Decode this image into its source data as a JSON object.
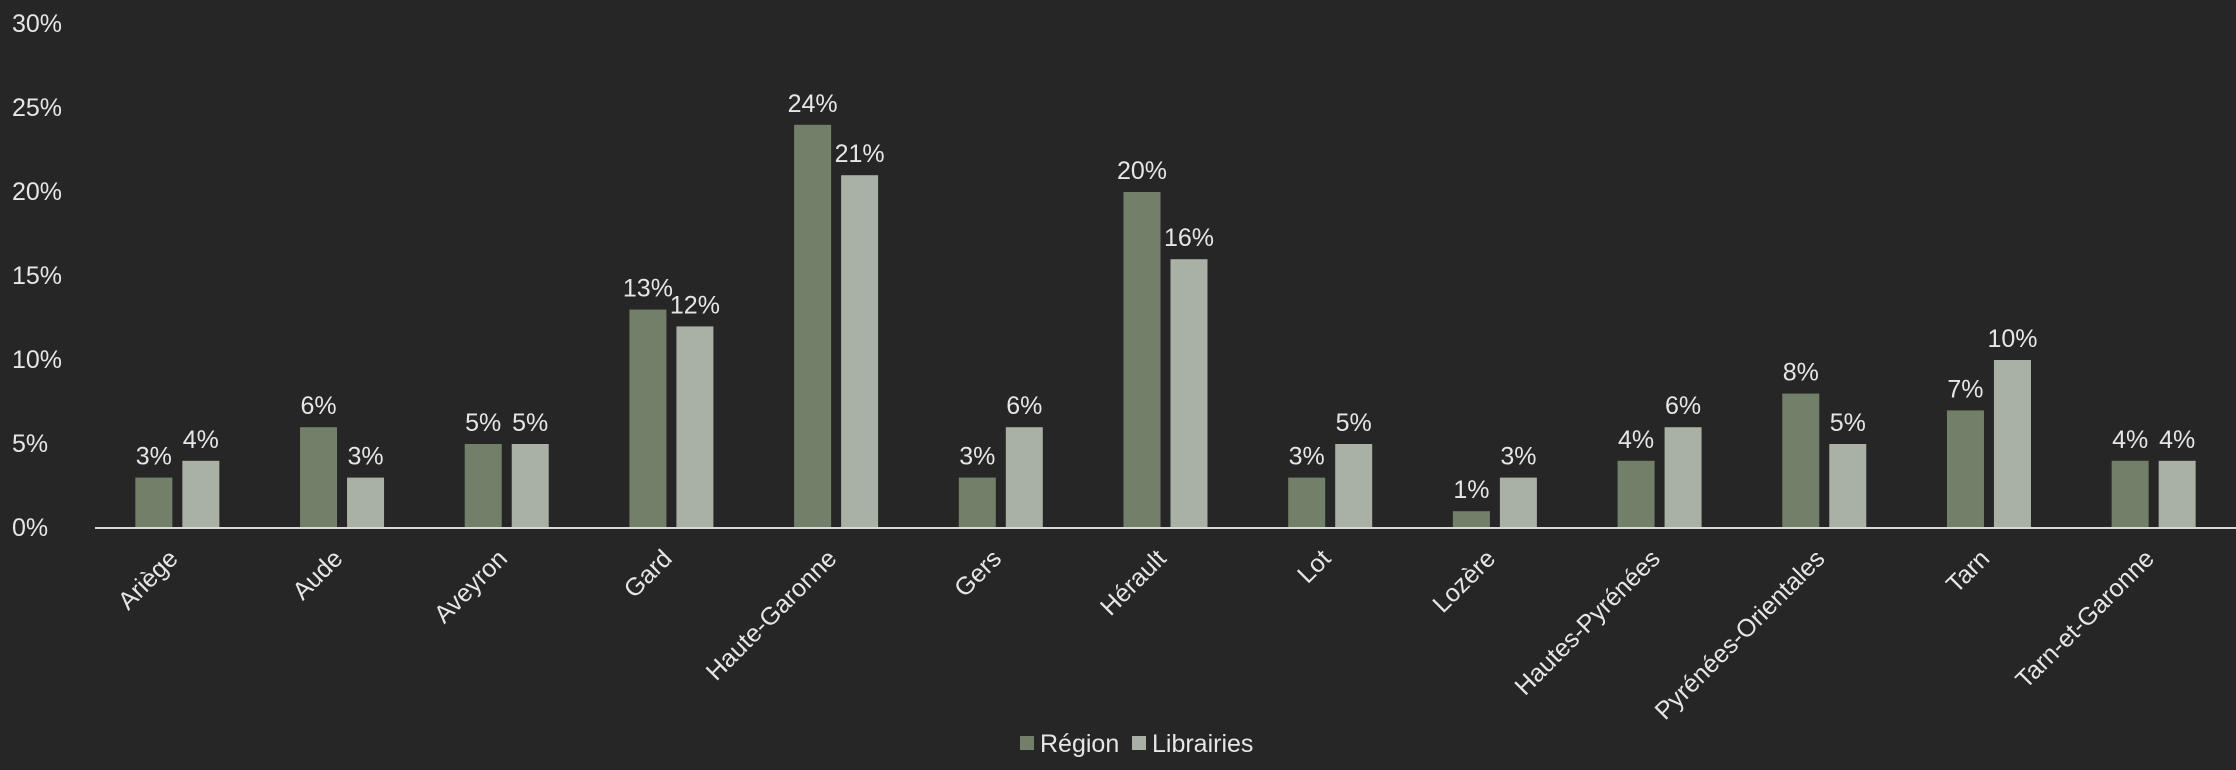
{
  "chart_data": {
    "type": "bar",
    "categories": [
      "Ariège",
      "Aude",
      "Aveyron",
      "Gard",
      "Haute-Garonne",
      "Gers",
      "Hérault",
      "Lot",
      "Lozère",
      "Hautes-Pyrénées",
      "Pyrénées-Orientales",
      "Tarn",
      "Tarn-et-Garonne"
    ],
    "series": [
      {
        "name": "Région",
        "values": [
          3,
          6,
          5,
          13,
          24,
          3,
          20,
          3,
          1,
          4,
          8,
          7,
          4
        ],
        "color": "#738069"
      },
      {
        "name": "Librairies",
        "values": [
          4,
          3,
          5,
          12,
          21,
          6,
          16,
          5,
          3,
          6,
          5,
          10,
          4
        ],
        "color": "#a9b0a4"
      }
    ],
    "data_labels": [
      [
        "3%",
        "6%",
        "5%",
        "13%",
        "24%",
        "3%",
        "20%",
        "3%",
        "1%",
        "4%",
        "8%",
        "7%",
        "4%"
      ],
      [
        "4%",
        "3%",
        "5%",
        "12%",
        "21%",
        "6%",
        "16%",
        "5%",
        "3%",
        "6%",
        "5%",
        "10%",
        "4%"
      ]
    ],
    "ylim": [
      0,
      30
    ],
    "yticks": [
      "0%",
      "5%",
      "10%",
      "15%",
      "20%",
      "25%",
      "30%"
    ],
    "grid": false,
    "legend_position": "bottom-center",
    "title": "",
    "xlabel": "",
    "ylabel": ""
  },
  "colors": {
    "background": "#262626",
    "text": "#e6e6e6",
    "axis": "#d9d9d9"
  }
}
